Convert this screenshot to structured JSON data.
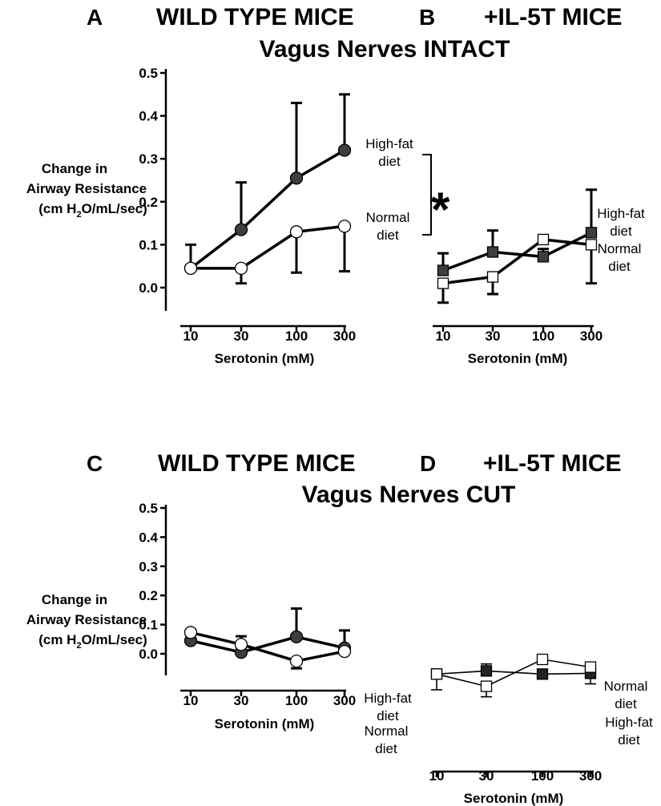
{
  "titles": {
    "row1_left": "WILD TYPE MICE",
    "row1_right": "+IL-5T MICE",
    "row1_sub": "Vagus Nerves INTACT",
    "row2_left": "WILD TYPE MICE",
    "row2_right": "+IL-5T MICE",
    "row2_sub": "Vagus Nerves CUT"
  },
  "ylabel": {
    "line1": "Change in",
    "line2": "Airway Resistance",
    "line3_pre": "(cm H",
    "line3_sub": "2",
    "line3_post": "O/mL/sec)"
  },
  "significance_marker": "*",
  "chart_data": [
    {
      "panel": "A",
      "type": "line",
      "x_scale": "log",
      "categories": [
        "10",
        "30",
        "100",
        "300"
      ],
      "x": [
        10,
        30,
        100,
        300
      ],
      "xlabel": "Serotonin (mM)",
      "ylim": [
        0.0,
        0.5
      ],
      "yticks": [
        "0.0",
        "0.1",
        "0.2",
        "0.3",
        "0.4",
        "0.5"
      ],
      "series": [
        {
          "name": "High-fat diet",
          "marker": "circle",
          "fill": "#3a4040",
          "values": [
            0.045,
            0.135,
            0.255,
            0.32
          ],
          "err": [
            0.0,
            0.11,
            0.175,
            0.13
          ]
        },
        {
          "name": "Normal diet",
          "marker": "circle",
          "fill": "#ffffff",
          "values": [
            0.045,
            0.045,
            0.13,
            0.143
          ],
          "err": [
            0.055,
            0.035,
            0.095,
            0.105
          ]
        }
      ],
      "labels": [
        {
          "lines": [
            "High-fat",
            "diet"
          ]
        },
        {
          "lines": [
            "Normal",
            "diet"
          ]
        }
      ]
    },
    {
      "panel": "B",
      "type": "line",
      "x_scale": "log",
      "categories": [
        "10",
        "30",
        "100",
        "300"
      ],
      "x": [
        10,
        30,
        100,
        300
      ],
      "xlabel": "Serotonin (mM)",
      "ylim": [
        0.0,
        0.5
      ],
      "series": [
        {
          "name": "High-fat diet",
          "marker": "square",
          "fill": "#3a4040",
          "values": [
            0.04,
            0.083,
            0.072,
            0.128
          ],
          "err": [
            0.04,
            0.05,
            0.018,
            0.1
          ]
        },
        {
          "name": "Normal diet",
          "marker": "square",
          "fill": "#ffffff",
          "values": [
            0.01,
            0.025,
            0.112,
            0.1
          ],
          "err": [
            0.045,
            0.04,
            0.01,
            0.09
          ]
        }
      ],
      "labels": [
        {
          "lines": [
            "High-fat",
            "diet"
          ]
        },
        {
          "lines": [
            "Normal",
            "diet"
          ]
        }
      ]
    },
    {
      "panel": "C",
      "type": "line",
      "x_scale": "log",
      "categories": [
        "10",
        "30",
        "100",
        "300"
      ],
      "x": [
        10,
        30,
        100,
        300
      ],
      "xlabel": "Serotonin (mM)",
      "ylim": [
        0.0,
        0.5
      ],
      "yticks": [
        "0.0",
        "0.1",
        "0.2",
        "0.3",
        "0.4",
        "0.5"
      ],
      "series": [
        {
          "name": "High-fat diet",
          "marker": "circle",
          "fill": "#3a4040",
          "values": [
            0.045,
            0.005,
            0.058,
            0.02
          ],
          "err": [
            0.035,
            0.055,
            0.097,
            0.06
          ]
        },
        {
          "name": "Normal diet",
          "marker": "circle",
          "fill": "#ffffff",
          "values": [
            0.073,
            0.032,
            -0.025,
            0.008
          ],
          "err": [
            0.035,
            0.025,
            0.025,
            0.0
          ]
        }
      ],
      "labels": [
        {
          "lines": [
            "High-fat",
            "diet"
          ]
        },
        {
          "lines": [
            "Normal",
            "diet"
          ]
        }
      ]
    },
    {
      "panel": "D",
      "type": "line",
      "x_scale": "log",
      "categories": [
        "10",
        "30",
        "100",
        "300"
      ],
      "x": [
        10,
        30,
        100,
        300
      ],
      "xlabel": "Serotonin (mM)",
      "ylim": [
        0.0,
        0.5
      ],
      "series": [
        {
          "name": "High-fat diet",
          "marker": "square",
          "fill": "#222222",
          "values": [
            0.013,
            0.022,
            0.013,
            0.015
          ],
          "err": [
            0.0,
            0.02,
            0.0,
            0.03
          ]
        },
        {
          "name": "Normal diet",
          "marker": "square",
          "fill": "#ffffff",
          "values": [
            0.013,
            -0.022,
            0.055,
            0.033
          ],
          "err": [
            0.045,
            0.03,
            0.0,
            0.0
          ]
        }
      ],
      "labels": [
        {
          "lines": [
            "Normal",
            "diet"
          ]
        },
        {
          "lines": [
            "High-fat",
            "diet"
          ]
        }
      ]
    }
  ]
}
